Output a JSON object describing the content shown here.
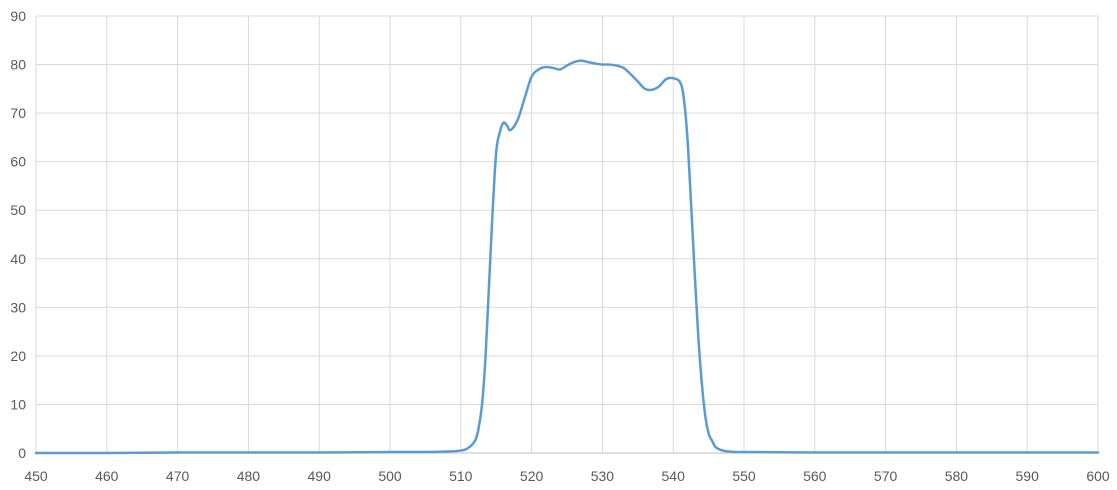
{
  "chart_data": {
    "type": "line",
    "title": "",
    "xlabel": "",
    "ylabel": "",
    "xlim": [
      450,
      600
    ],
    "ylim": [
      0,
      90
    ],
    "x_ticks": [
      450,
      460,
      470,
      480,
      490,
      500,
      510,
      520,
      530,
      540,
      550,
      560,
      570,
      580,
      590,
      600
    ],
    "y_ticks": [
      0,
      10,
      20,
      30,
      40,
      50,
      60,
      70,
      80,
      90
    ],
    "grid": true,
    "legend": "none",
    "series": [
      {
        "color": "#5b9bd5",
        "x": [
          450,
          460,
          470,
          480,
          490,
          500,
          505,
          508,
          510,
          511,
          512,
          512.5,
          513,
          513.5,
          514,
          514.5,
          515,
          515.5,
          516,
          516.5,
          517,
          518,
          519,
          520,
          521,
          522,
          523,
          524,
          525,
          526,
          527,
          528,
          529,
          530,
          531,
          532,
          533,
          534,
          535,
          536,
          537,
          538,
          539,
          540,
          541,
          541.5,
          542,
          542.5,
          543,
          543.5,
          544,
          544.5,
          545,
          545.5,
          546,
          547,
          548,
          550,
          560,
          570,
          580,
          590,
          600
        ],
        "y": [
          0,
          0,
          0.1,
          0.1,
          0.1,
          0.2,
          0.2,
          0.3,
          0.5,
          1,
          2.5,
          5,
          10,
          20,
          35,
          50,
          62,
          66,
          68,
          67.5,
          66.5,
          68.5,
          73,
          77.5,
          79,
          79.5,
          79.3,
          79,
          79.8,
          80.5,
          80.8,
          80.5,
          80.2,
          80,
          80,
          79.8,
          79.3,
          78,
          76.5,
          75,
          74.8,
          75.5,
          77,
          77.2,
          76.3,
          73,
          65,
          52,
          38,
          25,
          15,
          8,
          4,
          2.5,
          1.2,
          0.5,
          0.3,
          0.2,
          0.1,
          0.1,
          0.1,
          0.1,
          0.1
        ]
      }
    ]
  }
}
